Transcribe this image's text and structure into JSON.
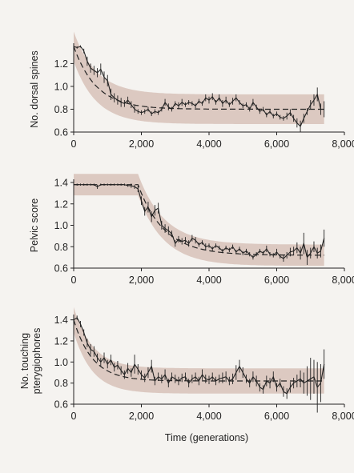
{
  "colors": {
    "background": "#f5f3f0",
    "band": "#dcc9c1",
    "ink": "#222222"
  },
  "xlabel": "Time (generations)",
  "chart_data": [
    {
      "type": "line",
      "ylabel": [
        "No. dorsal spines"
      ],
      "xlim": [
        0,
        8000
      ],
      "ylim": [
        0.6,
        1.35
      ],
      "xticks": [
        0,
        2000,
        4000,
        6000,
        8000
      ],
      "xtick_labels": [
        "0",
        "2,000",
        "4,000",
        "6,000",
        "8,000"
      ],
      "yticks": [
        0.6,
        0.8,
        1.0,
        1.2
      ],
      "ytick_labels": [
        "0.6",
        "0.8",
        "1.0",
        "1.2"
      ],
      "fit": {
        "start": 1.35,
        "end": 0.8,
        "rate": 0.0015
      },
      "band_width": 0.13,
      "x": [
        0,
        100,
        200,
        300,
        400,
        500,
        600,
        700,
        800,
        900,
        1000,
        1100,
        1200,
        1300,
        1400,
        1500,
        1600,
        1700,
        1800,
        1900,
        2000,
        2100,
        2200,
        2300,
        2400,
        2500,
        2600,
        2700,
        2800,
        2900,
        3000,
        3100,
        3200,
        3300,
        3400,
        3500,
        3600,
        3700,
        3800,
        3900,
        4000,
        4100,
        4200,
        4300,
        4400,
        4500,
        4600,
        4700,
        4800,
        4900,
        5000,
        5100,
        5200,
        5300,
        5400,
        5500,
        5600,
        5700,
        5800,
        5900,
        6000,
        6100,
        6200,
        6300,
        6400,
        6500,
        6600,
        6700,
        6800,
        6900,
        7000,
        7100,
        7200,
        7300,
        7400
      ],
      "y": [
        1.35,
        1.34,
        1.35,
        1.31,
        1.22,
        1.16,
        1.14,
        1.12,
        1.15,
        1.08,
        1.05,
        0.93,
        0.9,
        0.88,
        0.86,
        0.85,
        0.88,
        0.84,
        0.8,
        0.78,
        0.77,
        0.78,
        0.8,
        0.76,
        0.78,
        0.77,
        0.8,
        0.86,
        0.82,
        0.8,
        0.85,
        0.83,
        0.86,
        0.84,
        0.86,
        0.85,
        0.83,
        0.87,
        0.85,
        0.9,
        0.88,
        0.91,
        0.86,
        0.9,
        0.85,
        0.88,
        0.84,
        0.87,
        0.9,
        0.86,
        0.83,
        0.84,
        0.8,
        0.86,
        0.82,
        0.78,
        0.8,
        0.75,
        0.78,
        0.74,
        0.76,
        0.73,
        0.72,
        0.74,
        0.77,
        0.72,
        0.68,
        0.65,
        0.72,
        0.78,
        0.84,
        0.88,
        0.93,
        0.8,
        0.8
      ],
      "err": [
        0.01,
        0.01,
        0.01,
        0.02,
        0.04,
        0.04,
        0.04,
        0.04,
        0.05,
        0.05,
        0.05,
        0.05,
        0.04,
        0.04,
        0.04,
        0.03,
        0.03,
        0.03,
        0.03,
        0.02,
        0.02,
        0.02,
        0.02,
        0.02,
        0.02,
        0.02,
        0.02,
        0.03,
        0.03,
        0.02,
        0.02,
        0.03,
        0.03,
        0.02,
        0.02,
        0.02,
        0.02,
        0.02,
        0.02,
        0.03,
        0.03,
        0.03,
        0.02,
        0.03,
        0.03,
        0.03,
        0.02,
        0.03,
        0.03,
        0.02,
        0.02,
        0.02,
        0.02,
        0.03,
        0.02,
        0.02,
        0.02,
        0.02,
        0.02,
        0.02,
        0.02,
        0.02,
        0.02,
        0.03,
        0.03,
        0.03,
        0.04,
        0.05,
        0.04,
        0.03,
        0.04,
        0.05,
        0.06,
        0.05,
        0.07
      ]
    },
    {
      "type": "line",
      "ylabel": [
        "Pelvic score"
      ],
      "xlim": [
        0,
        8000
      ],
      "ylim": [
        0.6,
        1.4
      ],
      "xticks": [
        0,
        2000,
        4000,
        6000,
        8000
      ],
      "xtick_labels": [
        "0",
        "2,000",
        "4,000",
        "6,000",
        "8,000"
      ],
      "yticks": [
        0.6,
        0.8,
        1.0,
        1.2,
        1.4
      ],
      "ytick_labels": [
        "0.6",
        "0.8",
        "1.0",
        "1.2",
        "1.4"
      ],
      "fit": {
        "start": 1.38,
        "end": 0.72,
        "rate": 0.0013,
        "lag": 1900
      },
      "band_width": 0.1,
      "x": [
        0,
        100,
        200,
        300,
        400,
        500,
        600,
        700,
        800,
        900,
        1000,
        1100,
        1200,
        1300,
        1400,
        1500,
        1600,
        1700,
        1800,
        1900,
        2000,
        2100,
        2200,
        2300,
        2400,
        2500,
        2600,
        2700,
        2800,
        2900,
        3000,
        3100,
        3200,
        3300,
        3400,
        3500,
        3600,
        3700,
        3800,
        3900,
        4000,
        4100,
        4200,
        4300,
        4400,
        4500,
        4600,
        4700,
        4800,
        4900,
        5000,
        5100,
        5200,
        5300,
        5400,
        5500,
        5600,
        5700,
        5800,
        5900,
        6000,
        6100,
        6200,
        6300,
        6400,
        6500,
        6600,
        6700,
        6800,
        6900,
        7000,
        7100,
        7200,
        7300,
        7400
      ],
      "y": [
        1.38,
        1.38,
        1.38,
        1.38,
        1.38,
        1.38,
        1.38,
        1.36,
        1.38,
        1.38,
        1.38,
        1.38,
        1.38,
        1.38,
        1.38,
        1.38,
        1.37,
        1.37,
        1.36,
        1.34,
        1.23,
        1.13,
        1.17,
        1.08,
        1.14,
        1.16,
        1.0,
        0.97,
        0.95,
        0.92,
        0.83,
        0.87,
        0.85,
        0.86,
        0.83,
        0.88,
        0.86,
        0.82,
        0.84,
        0.8,
        0.81,
        0.78,
        0.81,
        0.79,
        0.76,
        0.79,
        0.77,
        0.8,
        0.75,
        0.78,
        0.74,
        0.76,
        0.73,
        0.7,
        0.73,
        0.76,
        0.74,
        0.78,
        0.73,
        0.72,
        0.75,
        0.71,
        0.69,
        0.72,
        0.75,
        0.76,
        0.79,
        0.74,
        0.83,
        0.7,
        0.74,
        0.8,
        0.74,
        0.76,
        0.88
      ],
      "err": [
        0.01,
        0.01,
        0.01,
        0.01,
        0.01,
        0.01,
        0.01,
        0.02,
        0.01,
        0.01,
        0.01,
        0.01,
        0.01,
        0.01,
        0.01,
        0.01,
        0.01,
        0.02,
        0.02,
        0.03,
        0.04,
        0.04,
        0.05,
        0.05,
        0.05,
        0.05,
        0.04,
        0.04,
        0.04,
        0.03,
        0.03,
        0.03,
        0.03,
        0.03,
        0.03,
        0.03,
        0.03,
        0.02,
        0.02,
        0.03,
        0.02,
        0.02,
        0.02,
        0.02,
        0.02,
        0.02,
        0.02,
        0.02,
        0.02,
        0.02,
        0.02,
        0.02,
        0.02,
        0.02,
        0.02,
        0.02,
        0.02,
        0.03,
        0.02,
        0.02,
        0.03,
        0.02,
        0.03,
        0.03,
        0.04,
        0.04,
        0.05,
        0.06,
        0.1,
        0.07,
        0.05,
        0.05,
        0.05,
        0.06,
        0.08
      ]
    },
    {
      "type": "line",
      "ylabel": [
        "No. touching",
        "pterygiophores"
      ],
      "xlim": [
        0,
        8000
      ],
      "ylim": [
        0.6,
        1.42
      ],
      "xticks": [
        0,
        2000,
        4000,
        6000,
        8000
      ],
      "xtick_labels": [
        "0",
        "2,000",
        "4,000",
        "6,000",
        "8,000"
      ],
      "yticks": [
        0.6,
        0.8,
        1.0,
        1.2,
        1.4
      ],
      "ytick_labels": [
        "0.6",
        "0.8",
        "1.0",
        "1.2",
        "1.4"
      ],
      "fit": {
        "start": 1.4,
        "end": 0.82,
        "rate": 0.0018
      },
      "band_width": 0.12,
      "x": [
        0,
        100,
        200,
        300,
        400,
        500,
        600,
        700,
        800,
        900,
        1000,
        1100,
        1200,
        1300,
        1400,
        1500,
        1600,
        1700,
        1800,
        1900,
        2000,
        2100,
        2200,
        2300,
        2400,
        2500,
        2600,
        2700,
        2800,
        2900,
        3000,
        3100,
        3200,
        3300,
        3400,
        3500,
        3600,
        3700,
        3800,
        3900,
        4000,
        4100,
        4200,
        4300,
        4400,
        4500,
        4600,
        4700,
        4800,
        4900,
        5000,
        5100,
        5200,
        5300,
        5400,
        5500,
        5600,
        5700,
        5800,
        5900,
        6000,
        6100,
        6200,
        6300,
        6400,
        6500,
        6600,
        6700,
        6800,
        6900,
        7000,
        7100,
        7200,
        7300,
        7400
      ],
      "y": [
        1.4,
        1.42,
        1.36,
        1.28,
        1.18,
        1.12,
        1.1,
        1.04,
        1.0,
        1.04,
        0.98,
        1.02,
        0.95,
        0.97,
        0.92,
        0.88,
        0.94,
        0.9,
        0.98,
        0.93,
        0.88,
        0.85,
        0.9,
        0.96,
        0.82,
        0.86,
        0.84,
        0.88,
        0.8,
        0.86,
        0.84,
        0.82,
        0.85,
        0.86,
        0.8,
        0.84,
        0.86,
        0.82,
        0.88,
        0.84,
        0.83,
        0.86,
        0.82,
        0.84,
        0.85,
        0.86,
        0.82,
        0.84,
        0.9,
        0.96,
        0.9,
        0.84,
        0.8,
        0.86,
        0.82,
        0.76,
        0.74,
        0.82,
        0.8,
        0.86,
        0.76,
        0.8,
        0.72,
        0.7,
        0.76,
        0.8,
        0.82,
        0.84,
        0.8,
        0.82,
        0.84,
        0.86,
        0.76,
        0.8,
        0.98
      ],
      "err": [
        0.02,
        0.02,
        0.03,
        0.03,
        0.04,
        0.05,
        0.05,
        0.04,
        0.04,
        0.05,
        0.04,
        0.05,
        0.04,
        0.04,
        0.04,
        0.04,
        0.05,
        0.04,
        0.09,
        0.05,
        0.04,
        0.04,
        0.05,
        0.06,
        0.04,
        0.04,
        0.04,
        0.05,
        0.04,
        0.04,
        0.04,
        0.04,
        0.04,
        0.04,
        0.04,
        0.04,
        0.04,
        0.04,
        0.05,
        0.04,
        0.04,
        0.04,
        0.04,
        0.04,
        0.05,
        0.05,
        0.04,
        0.05,
        0.07,
        0.06,
        0.05,
        0.04,
        0.04,
        0.05,
        0.05,
        0.04,
        0.04,
        0.05,
        0.05,
        0.05,
        0.04,
        0.04,
        0.05,
        0.05,
        0.05,
        0.05,
        0.06,
        0.08,
        0.1,
        0.14,
        0.2,
        0.16,
        0.24,
        0.18,
        0.14
      ]
    }
  ]
}
